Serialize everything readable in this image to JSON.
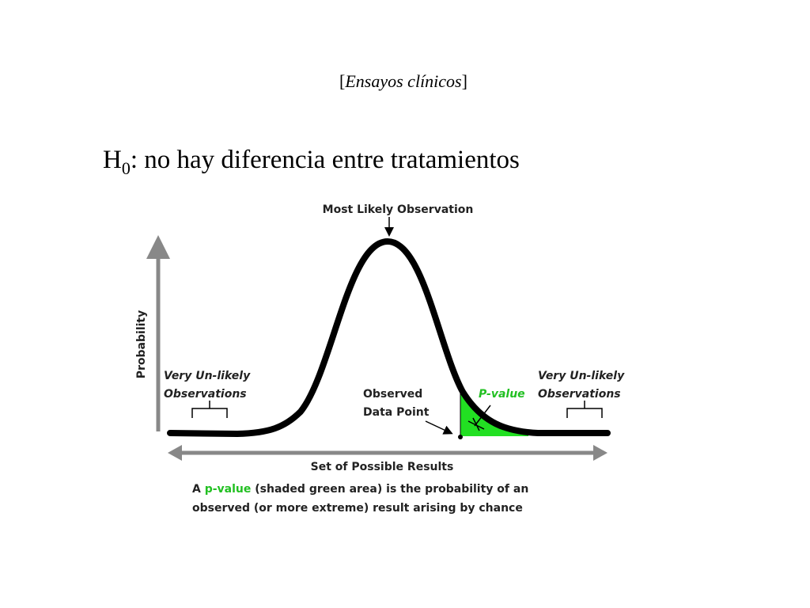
{
  "header": {
    "title_open": "[",
    "title": "Ensayos clínicos",
    "title_close": "]"
  },
  "hypothesis": {
    "symbol": "H",
    "subscript": "0",
    "text": ": no hay diferencia entre tratamientos"
  },
  "diagram": {
    "peak_label": "Most Likely Observation",
    "y_axis_label": "Probability",
    "x_axis_label": "Set of Possible Results",
    "left_label": [
      "Very Un-likely",
      "Observations"
    ],
    "right_label": [
      "Very Un-likely",
      "Observations"
    ],
    "observed_label": [
      "Observed",
      "Data Point"
    ],
    "p_value_label": "P-value",
    "caption": {
      "line1_start": "A ",
      "line1_highlight": "p-value",
      "line1_end": " (shaded green area) is the probability of an",
      "line2": "observed (or more extreme) result arising by chance"
    }
  }
}
